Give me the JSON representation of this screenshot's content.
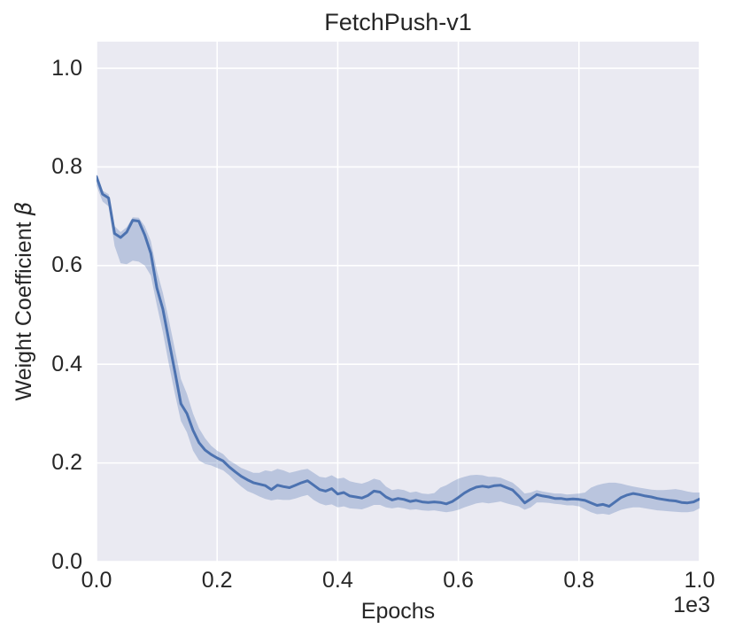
{
  "figure": {
    "title": "FetchPush-v1",
    "xlabel": "Epochs",
    "ylabel_text": "Weight Coefficient ",
    "ylabel_symbol": "β",
    "x_offset_label": "1e3",
    "colors": {
      "figure_bg": "#ffffff",
      "plot_bg": "#eaeaf2",
      "grid": "#ffffff",
      "text": "#262626",
      "line": "#4c72b0",
      "band": "rgba(76,114,176,0.30)"
    }
  },
  "chart_data": {
    "type": "line",
    "title": "FetchPush-v1",
    "xlabel": "Epochs",
    "ylabel": "Weight Coefficient β",
    "x_scale_factor": "1e3",
    "grid": true,
    "legend": null,
    "xlim": [
      0,
      1000
    ],
    "ylim": [
      0,
      1.054
    ],
    "x_ticks": [
      0,
      200,
      400,
      600,
      800,
      1000
    ],
    "x_tick_labels": [
      "0.0",
      "0.2",
      "0.4",
      "0.6",
      "0.8",
      "1.0"
    ],
    "y_ticks": [
      0.0,
      0.2,
      0.4,
      0.6,
      0.8,
      1.0
    ],
    "y_tick_labels": [
      "0.0",
      "0.2",
      "0.4",
      "0.6",
      "0.8",
      "1.0"
    ],
    "x": [
      0,
      10,
      20,
      30,
      40,
      50,
      60,
      70,
      80,
      90,
      100,
      110,
      120,
      130,
      140,
      150,
      160,
      170,
      180,
      190,
      200,
      210,
      220,
      230,
      240,
      250,
      260,
      270,
      280,
      290,
      300,
      310,
      320,
      330,
      340,
      350,
      360,
      370,
      380,
      390,
      400,
      410,
      420,
      430,
      440,
      450,
      460,
      470,
      480,
      490,
      500,
      510,
      520,
      530,
      540,
      550,
      560,
      570,
      580,
      590,
      600,
      610,
      620,
      630,
      640,
      650,
      660,
      670,
      680,
      690,
      700,
      710,
      720,
      730,
      740,
      750,
      760,
      770,
      780,
      790,
      800,
      810,
      820,
      830,
      840,
      850,
      860,
      870,
      880,
      890,
      900,
      910,
      920,
      930,
      940,
      950,
      960,
      970,
      980,
      990,
      1000
    ],
    "series": [
      {
        "name": "Weight Coefficient β (mean)",
        "values": [
          0.78,
          0.745,
          0.737,
          0.665,
          0.657,
          0.668,
          0.692,
          0.69,
          0.662,
          0.625,
          0.555,
          0.512,
          0.448,
          0.385,
          0.32,
          0.3,
          0.266,
          0.241,
          0.226,
          0.217,
          0.21,
          0.204,
          0.192,
          0.182,
          0.173,
          0.166,
          0.16,
          0.157,
          0.154,
          0.146,
          0.155,
          0.152,
          0.15,
          0.155,
          0.16,
          0.164,
          0.155,
          0.146,
          0.143,
          0.148,
          0.137,
          0.14,
          0.133,
          0.131,
          0.129,
          0.134,
          0.143,
          0.141,
          0.131,
          0.125,
          0.128,
          0.126,
          0.122,
          0.124,
          0.121,
          0.12,
          0.121,
          0.12,
          0.117,
          0.122,
          0.13,
          0.139,
          0.146,
          0.151,
          0.153,
          0.151,
          0.154,
          0.155,
          0.15,
          0.145,
          0.133,
          0.119,
          0.127,
          0.136,
          0.133,
          0.131,
          0.128,
          0.128,
          0.126,
          0.127,
          0.126,
          0.124,
          0.119,
          0.114,
          0.116,
          0.112,
          0.121,
          0.13,
          0.135,
          0.138,
          0.136,
          0.133,
          0.131,
          0.128,
          0.126,
          0.124,
          0.123,
          0.12,
          0.119,
          0.121,
          0.127
        ]
      },
      {
        "name": "confidence band lower",
        "values": [
          0.762,
          0.73,
          0.72,
          0.64,
          0.605,
          0.603,
          0.61,
          0.608,
          0.6,
          0.58,
          0.52,
          0.465,
          0.4,
          0.34,
          0.285,
          0.262,
          0.225,
          0.205,
          0.198,
          0.195,
          0.19,
          0.185,
          0.175,
          0.163,
          0.152,
          0.143,
          0.138,
          0.132,
          0.127,
          0.124,
          0.126,
          0.125,
          0.125,
          0.128,
          0.132,
          0.135,
          0.125,
          0.118,
          0.114,
          0.116,
          0.11,
          0.112,
          0.108,
          0.107,
          0.106,
          0.11,
          0.115,
          0.115,
          0.11,
          0.108,
          0.11,
          0.108,
          0.105,
          0.106,
          0.104,
          0.103,
          0.104,
          0.102,
          0.1,
          0.102,
          0.105,
          0.11,
          0.114,
          0.118,
          0.12,
          0.118,
          0.12,
          0.122,
          0.118,
          0.115,
          0.112,
          0.105,
          0.11,
          0.12,
          0.12,
          0.119,
          0.117,
          0.116,
          0.114,
          0.114,
          0.112,
          0.106,
          0.1,
          0.096,
          0.097,
          0.095,
          0.1,
          0.105,
          0.108,
          0.11,
          0.11,
          0.108,
          0.106,
          0.104,
          0.103,
          0.102,
          0.101,
          0.1,
          0.1,
          0.102,
          0.108
        ]
      },
      {
        "name": "confidence band upper",
        "values": [
          0.786,
          0.752,
          0.745,
          0.68,
          0.668,
          0.678,
          0.698,
          0.697,
          0.68,
          0.65,
          0.59,
          0.545,
          0.49,
          0.43,
          0.37,
          0.34,
          0.3,
          0.27,
          0.25,
          0.235,
          0.225,
          0.218,
          0.205,
          0.198,
          0.19,
          0.185,
          0.18,
          0.18,
          0.185,
          0.183,
          0.188,
          0.185,
          0.18,
          0.183,
          0.186,
          0.188,
          0.18,
          0.172,
          0.17,
          0.175,
          0.168,
          0.17,
          0.163,
          0.16,
          0.158,
          0.162,
          0.168,
          0.165,
          0.152,
          0.145,
          0.147,
          0.145,
          0.14,
          0.142,
          0.138,
          0.137,
          0.139,
          0.15,
          0.155,
          0.162,
          0.168,
          0.172,
          0.175,
          0.176,
          0.175,
          0.172,
          0.172,
          0.17,
          0.165,
          0.16,
          0.15,
          0.138,
          0.14,
          0.145,
          0.142,
          0.14,
          0.138,
          0.138,
          0.136,
          0.137,
          0.138,
          0.14,
          0.15,
          0.155,
          0.158,
          0.16,
          0.16,
          0.158,
          0.155,
          0.152,
          0.15,
          0.148,
          0.146,
          0.145,
          0.145,
          0.146,
          0.147,
          0.145,
          0.142,
          0.14,
          0.14
        ]
      }
    ]
  }
}
